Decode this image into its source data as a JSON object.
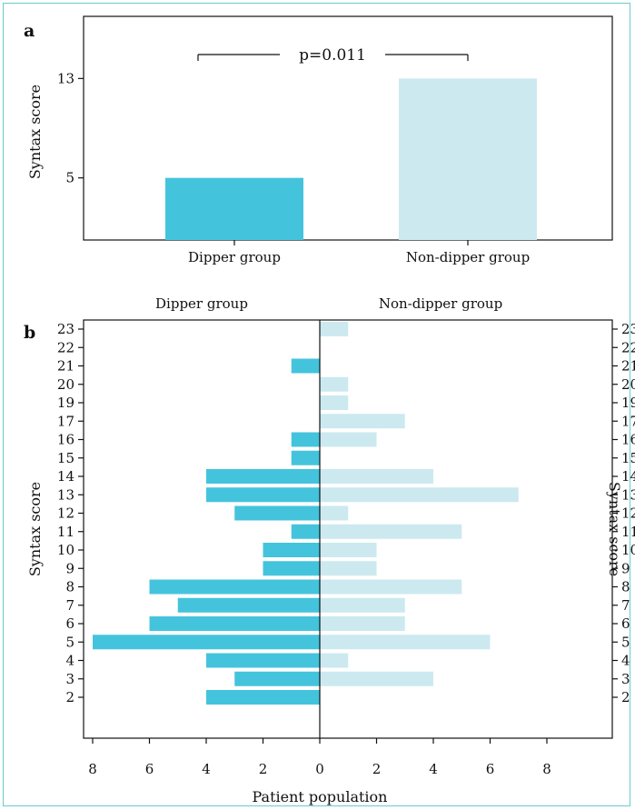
{
  "chart_data": [
    {
      "panel_label": "a",
      "type": "bar",
      "categories": [
        "Dipper group",
        "Non-dipper group"
      ],
      "values": [
        5,
        13
      ],
      "ylabel": "Syntax score",
      "yticks": [
        5,
        13
      ],
      "ylim": [
        0,
        18
      ],
      "annotation": "p=0.011",
      "colors": [
        "#44c4dc",
        "#cce9f0"
      ]
    },
    {
      "panel_label": "b",
      "type": "bar",
      "orientation": "horizontal",
      "left_title": "Dipper group",
      "right_title": "Non-dipper group",
      "ylabel": "Syntax score",
      "xlabel": "Patient population",
      "xticks": [
        "8",
        "6",
        "4",
        "2",
        "0",
        "2",
        "4",
        "6",
        "8"
      ],
      "xlim": [
        -8,
        8
      ],
      "categories": [
        "23",
        "22",
        "21",
        "20",
        "19",
        "17",
        "16",
        "15",
        "14",
        "13",
        "12",
        "11",
        "10",
        "9",
        "8",
        "7",
        "6",
        "5",
        "4",
        "3",
        "2"
      ],
      "series": [
        {
          "name": "Dipper group",
          "color": "#44c4dc",
          "values": [
            0,
            0,
            1,
            0,
            0,
            0,
            1,
            1,
            4,
            4,
            3,
            1,
            2,
            2,
            6,
            5,
            6,
            8,
            4,
            3,
            4
          ]
        },
        {
          "name": "Non-dipper group",
          "color": "#cce9f0",
          "values": [
            1,
            0,
            0,
            1,
            1,
            3,
            2,
            0,
            4,
            7,
            1,
            5,
            2,
            2,
            5,
            3,
            3,
            6,
            1,
            4,
            0
          ]
        }
      ]
    }
  ]
}
